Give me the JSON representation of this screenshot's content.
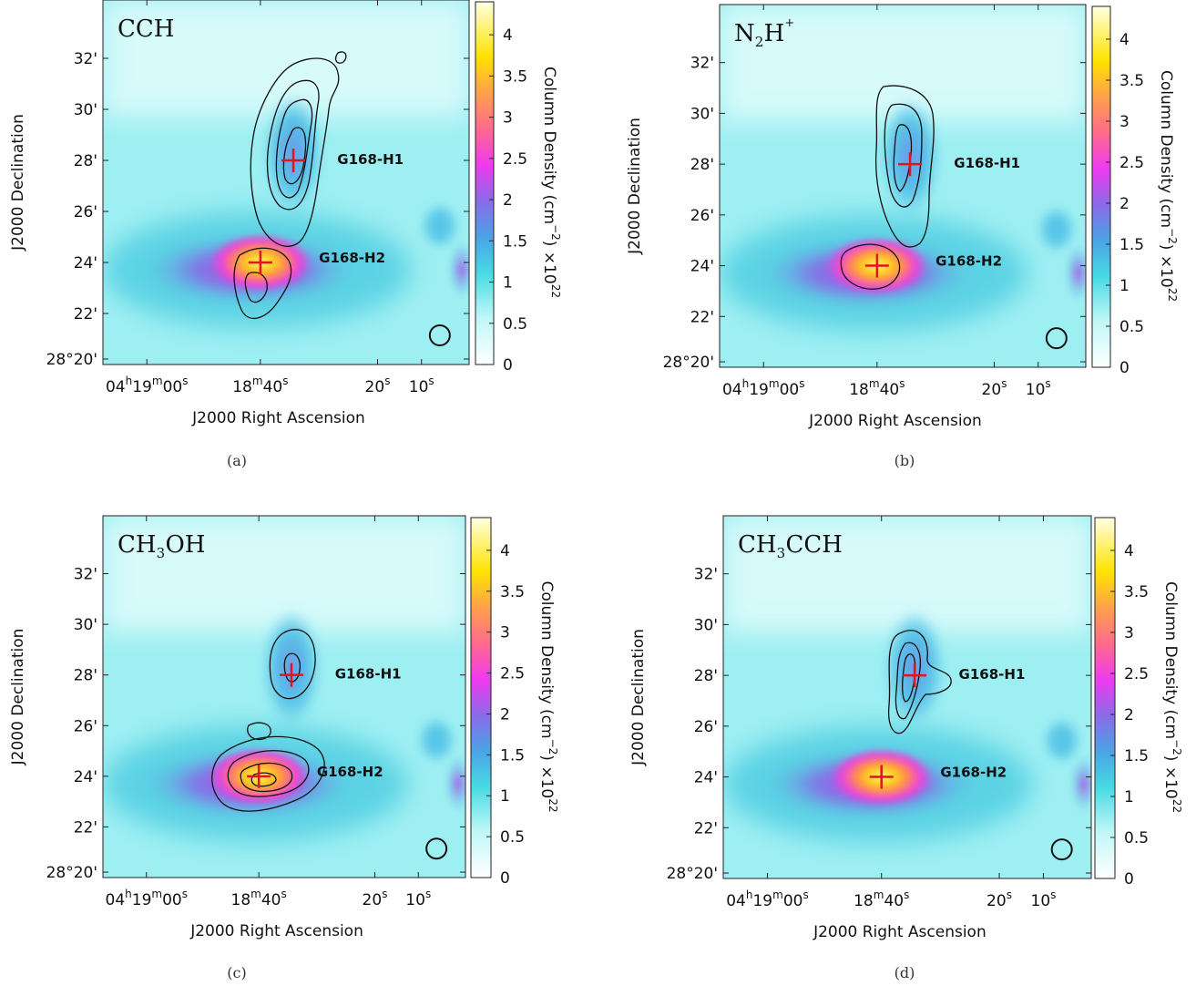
{
  "figure": {
    "panels": [
      {
        "molecule": "CCH",
        "caption": "(a)"
      },
      {
        "molecule": "N2H+",
        "caption": "(b)"
      },
      {
        "molecule": "CH3OH",
        "caption": "(c)"
      },
      {
        "molecule": "CH3CCH",
        "caption": "(d)"
      }
    ]
  },
  "axes": {
    "xlabel": "J2000 Right Ascension",
    "ylabel": "J2000 Declination",
    "xticks": [
      "04h19m00s",
      "18m40s",
      "20s",
      "10s"
    ],
    "yticks": [
      "32'",
      "30'",
      "28'",
      "26'",
      "24'",
      "22'",
      "28°20'"
    ]
  },
  "colorbar": {
    "label": "Column Density (cm−2) ×1022",
    "ticks": [
      "4",
      "3.5",
      "3",
      "2.5",
      "2",
      "1.5",
      "1",
      "0.5",
      "0"
    ],
    "range": [
      0,
      4.4
    ]
  },
  "sources": {
    "h1": "G168-H1",
    "h2": "G168-H2"
  },
  "chart_data": [
    {
      "type": "heatmap",
      "title": "CCH",
      "xlabel": "J2000 Right Ascension",
      "ylabel": "J2000 Declination",
      "sources": [
        "G168-H1",
        "G168-H2"
      ],
      "colorbar_range": [
        0,
        4.4
      ]
    },
    {
      "type": "heatmap",
      "title": "N2H+",
      "xlabel": "J2000 Right Ascension",
      "ylabel": "J2000 Declination",
      "sources": [
        "G168-H1",
        "G168-H2"
      ],
      "colorbar_range": [
        0,
        4.4
      ]
    },
    {
      "type": "heatmap",
      "title": "CH3OH",
      "xlabel": "J2000 Right Ascension",
      "ylabel": "J2000 Declination",
      "sources": [
        "G168-H1",
        "G168-H2"
      ],
      "colorbar_range": [
        0,
        4.4
      ]
    },
    {
      "type": "heatmap",
      "title": "CH3CCH",
      "xlabel": "J2000 Right Ascension",
      "ylabel": "J2000 Declination",
      "sources": [
        "G168-H1",
        "G168-H2"
      ],
      "colorbar_range": [
        0,
        4.4
      ]
    }
  ]
}
